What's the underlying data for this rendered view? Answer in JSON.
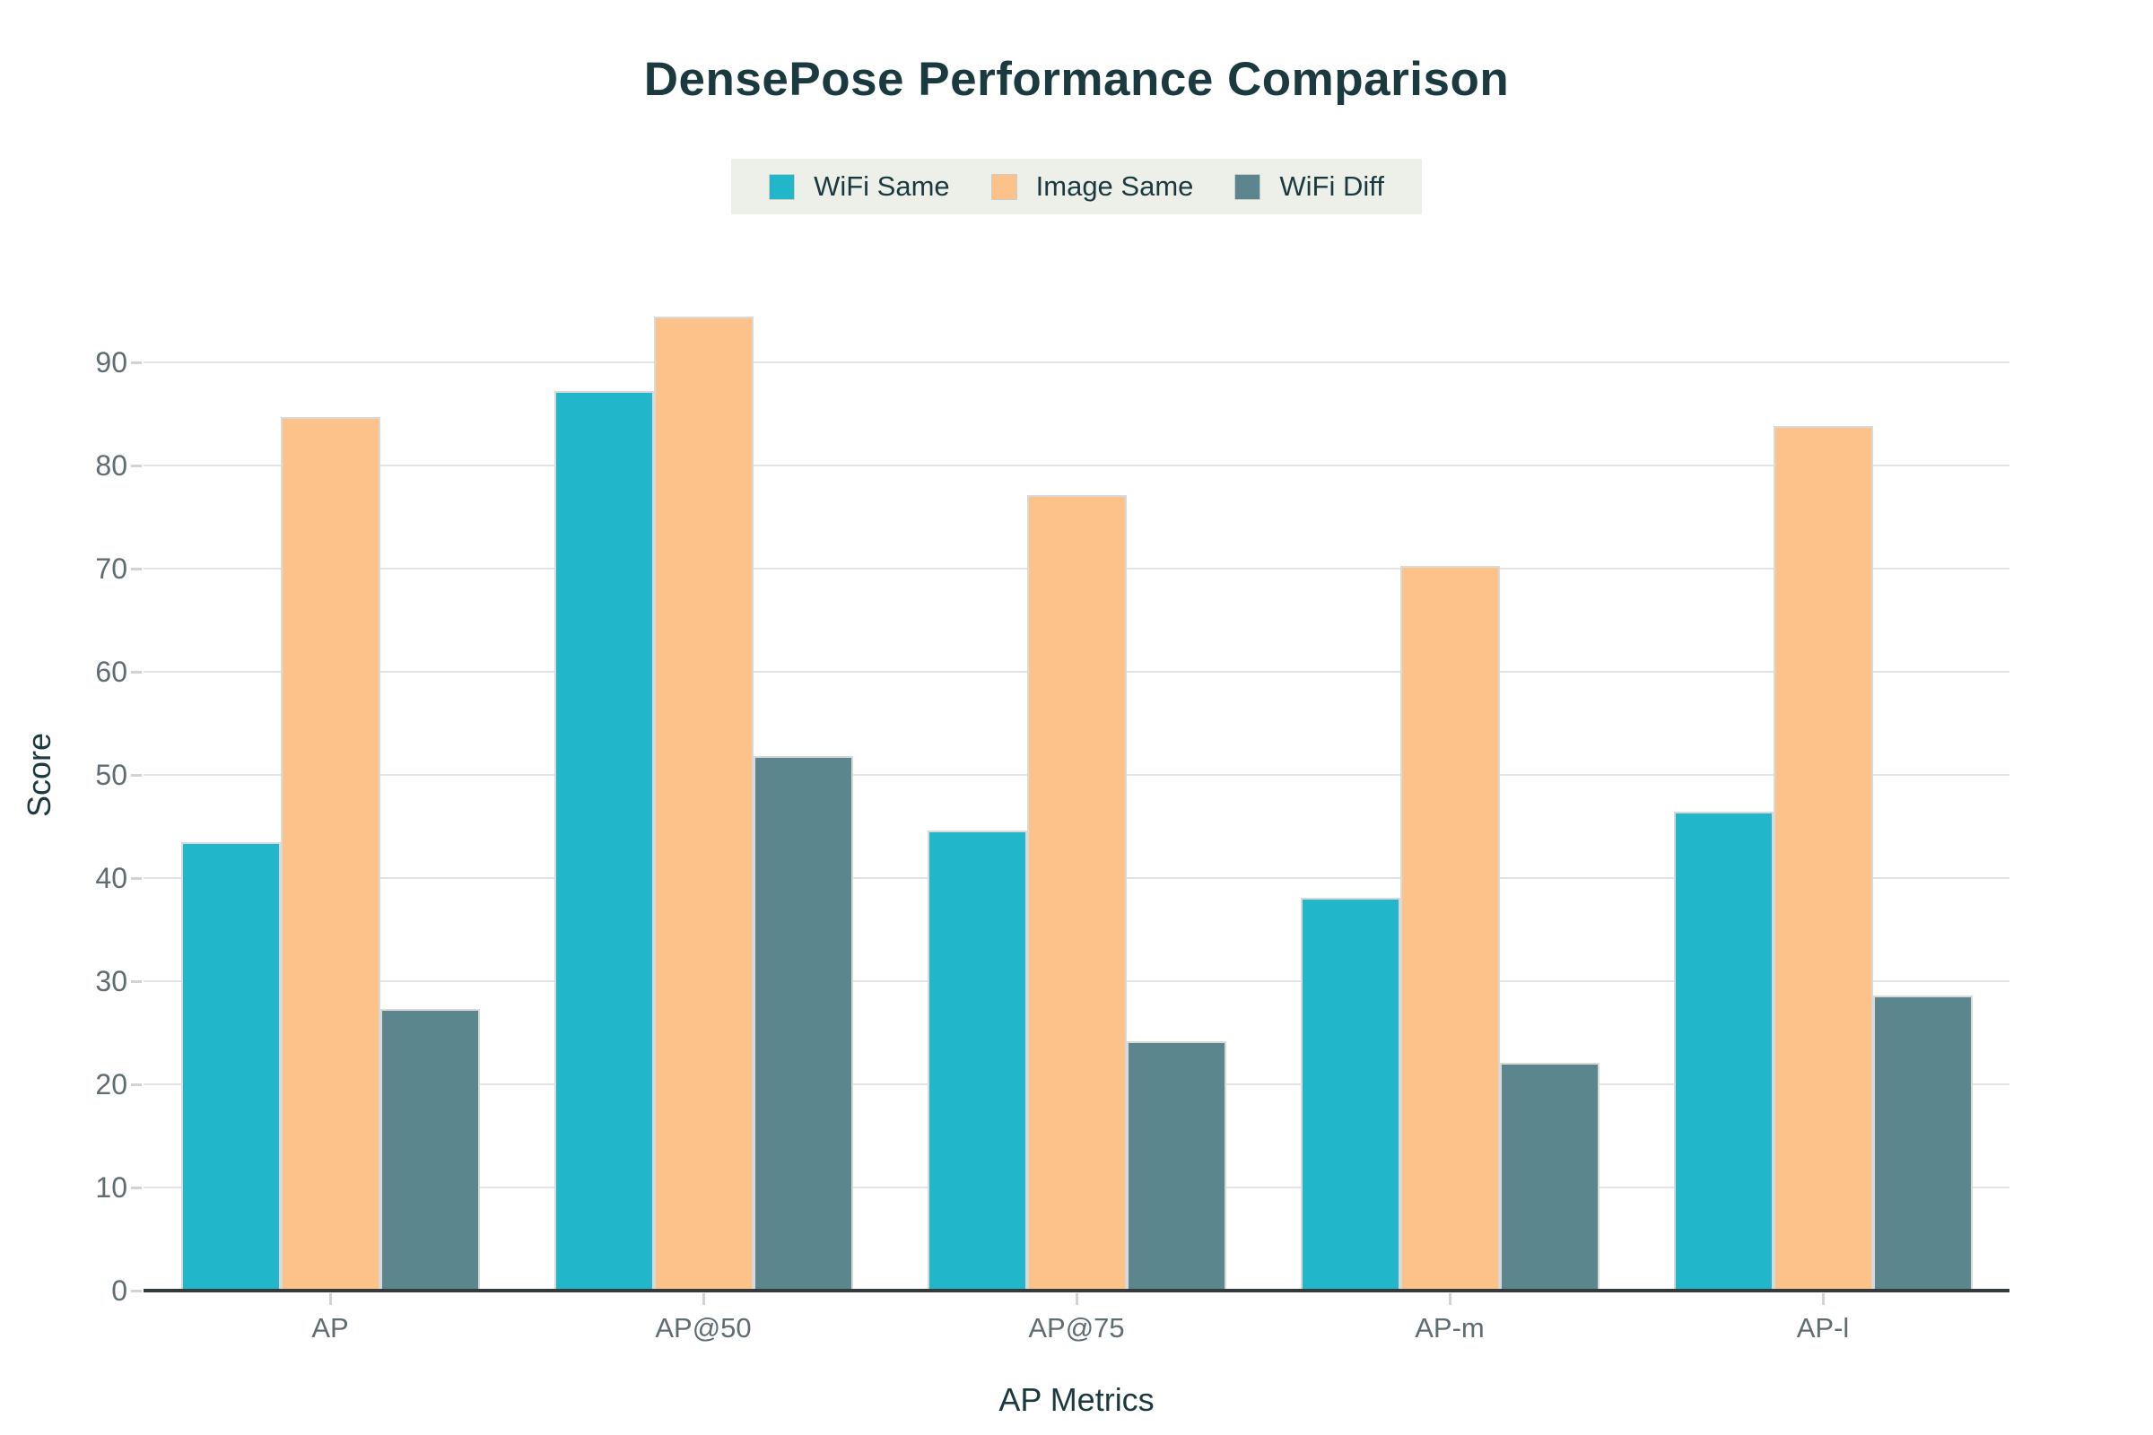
{
  "title": "DensePose Performance Comparison",
  "colors": {
    "title_text": "#1b3a40",
    "tick_text": "#5f6c71",
    "legend_background": "#edf0e9",
    "gridline": "#e4e4e4",
    "axis_line": "#333b3d",
    "series_wifi_same": "#21b6c9",
    "series_image_same": "#fdc289",
    "series_wifi_diff": "#5b868e"
  },
  "chart_data": {
    "type": "bar",
    "title": "DensePose Performance Comparison",
    "xlabel": "AP Metrics",
    "ylabel": "Score",
    "categories": [
      "AP",
      "AP@50",
      "AP@75",
      "AP-m",
      "AP-l"
    ],
    "series": [
      {
        "name": "WiFi Same",
        "color": "#21b6c9",
        "values": [
          43.5,
          87.2,
          44.6,
          38.1,
          46.4
        ]
      },
      {
        "name": "Image Same",
        "color": "#fdc289",
        "values": [
          84.7,
          94.4,
          77.1,
          70.3,
          83.8
        ]
      },
      {
        "name": "WiFi Diff",
        "color": "#5b868e",
        "values": [
          27.3,
          51.8,
          24.2,
          22.1,
          28.6
        ]
      }
    ],
    "ylim": [
      0,
      100
    ],
    "yticks": [
      0,
      10,
      20,
      30,
      40,
      50,
      60,
      70,
      80,
      90
    ],
    "grid": true,
    "legend_position": "top-center"
  }
}
